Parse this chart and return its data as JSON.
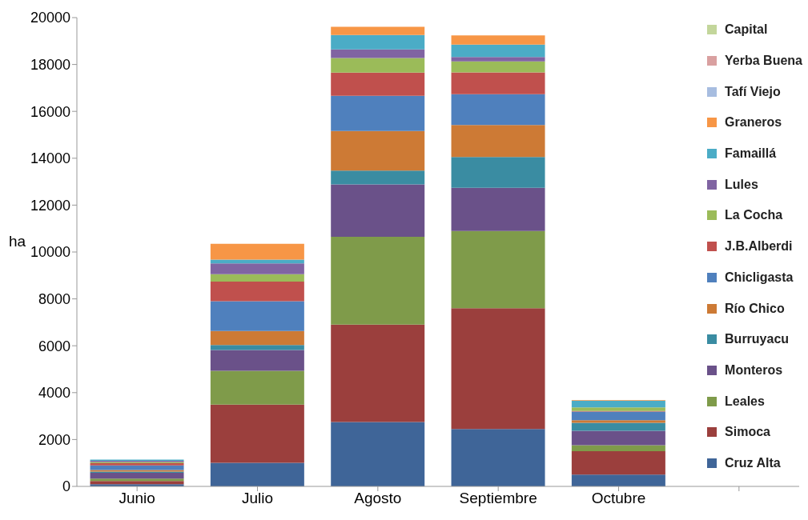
{
  "chart_data": {
    "type": "bar",
    "stacked": true,
    "ylabel": "ha",
    "categories": [
      "Junio",
      "Julio",
      "Agosto",
      "Septiembre",
      "Octubre",
      null
    ],
    "ylim": [
      0,
      20000
    ],
    "yticks": [
      0,
      2000,
      4000,
      6000,
      8000,
      10000,
      12000,
      14000,
      16000,
      18000,
      20000
    ],
    "grid": false,
    "legend": "right",
    "series": [
      {
        "name": "Cruz Alta",
        "color": "#3f6598",
        "values": [
          90,
          1010,
          2750,
          2450,
          500,
          null
        ]
      },
      {
        "name": "Simoca",
        "color": "#9b3f3d",
        "values": [
          140,
          2480,
          4150,
          5150,
          1000,
          null
        ]
      },
      {
        "name": "Leales",
        "color": "#7f9b4a",
        "values": [
          100,
          1440,
          3750,
          3300,
          260,
          null
        ]
      },
      {
        "name": "Monteros",
        "color": "#6a5189",
        "values": [
          250,
          890,
          2230,
          1840,
          610,
          null
        ]
      },
      {
        "name": "Burruyacu",
        "color": "#3a8ca2",
        "values": [
          50,
          210,
          590,
          1310,
          340,
          null
        ]
      },
      {
        "name": "Río Chico",
        "color": "#cd7a35",
        "values": [
          70,
          600,
          1690,
          1370,
          110,
          null
        ]
      },
      {
        "name": "Chicligasta",
        "color": "#4f80bd",
        "values": [
          200,
          1270,
          1500,
          1310,
          370,
          null
        ]
      },
      {
        "name": "J.B.Alberdi",
        "color": "#c0504d",
        "values": [
          90,
          840,
          990,
          930,
          30,
          null
        ]
      },
      {
        "name": "La Cocha",
        "color": "#9bbb59",
        "values": [
          50,
          310,
          630,
          470,
          150,
          null
        ]
      },
      {
        "name": "Lules",
        "color": "#8064a2",
        "values": [
          50,
          460,
          360,
          190,
          0,
          null
        ]
      },
      {
        "name": "Famaillá",
        "color": "#4bacc6",
        "values": [
          50,
          170,
          620,
          530,
          290,
          null
        ]
      },
      {
        "name": "Graneros",
        "color": "#f79646",
        "values": [
          0,
          670,
          350,
          390,
          30,
          null
        ]
      },
      {
        "name": "Tafí Viejo",
        "color": "#a7bde0",
        "values": [
          0,
          0,
          0,
          0,
          0,
          null
        ]
      },
      {
        "name": "Yerba Buena",
        "color": "#d9a0a0",
        "values": [
          0,
          0,
          0,
          0,
          0,
          null
        ]
      },
      {
        "name": "Capital",
        "color": "#c3d69b",
        "values": [
          0,
          0,
          0,
          0,
          0,
          null
        ]
      }
    ]
  }
}
